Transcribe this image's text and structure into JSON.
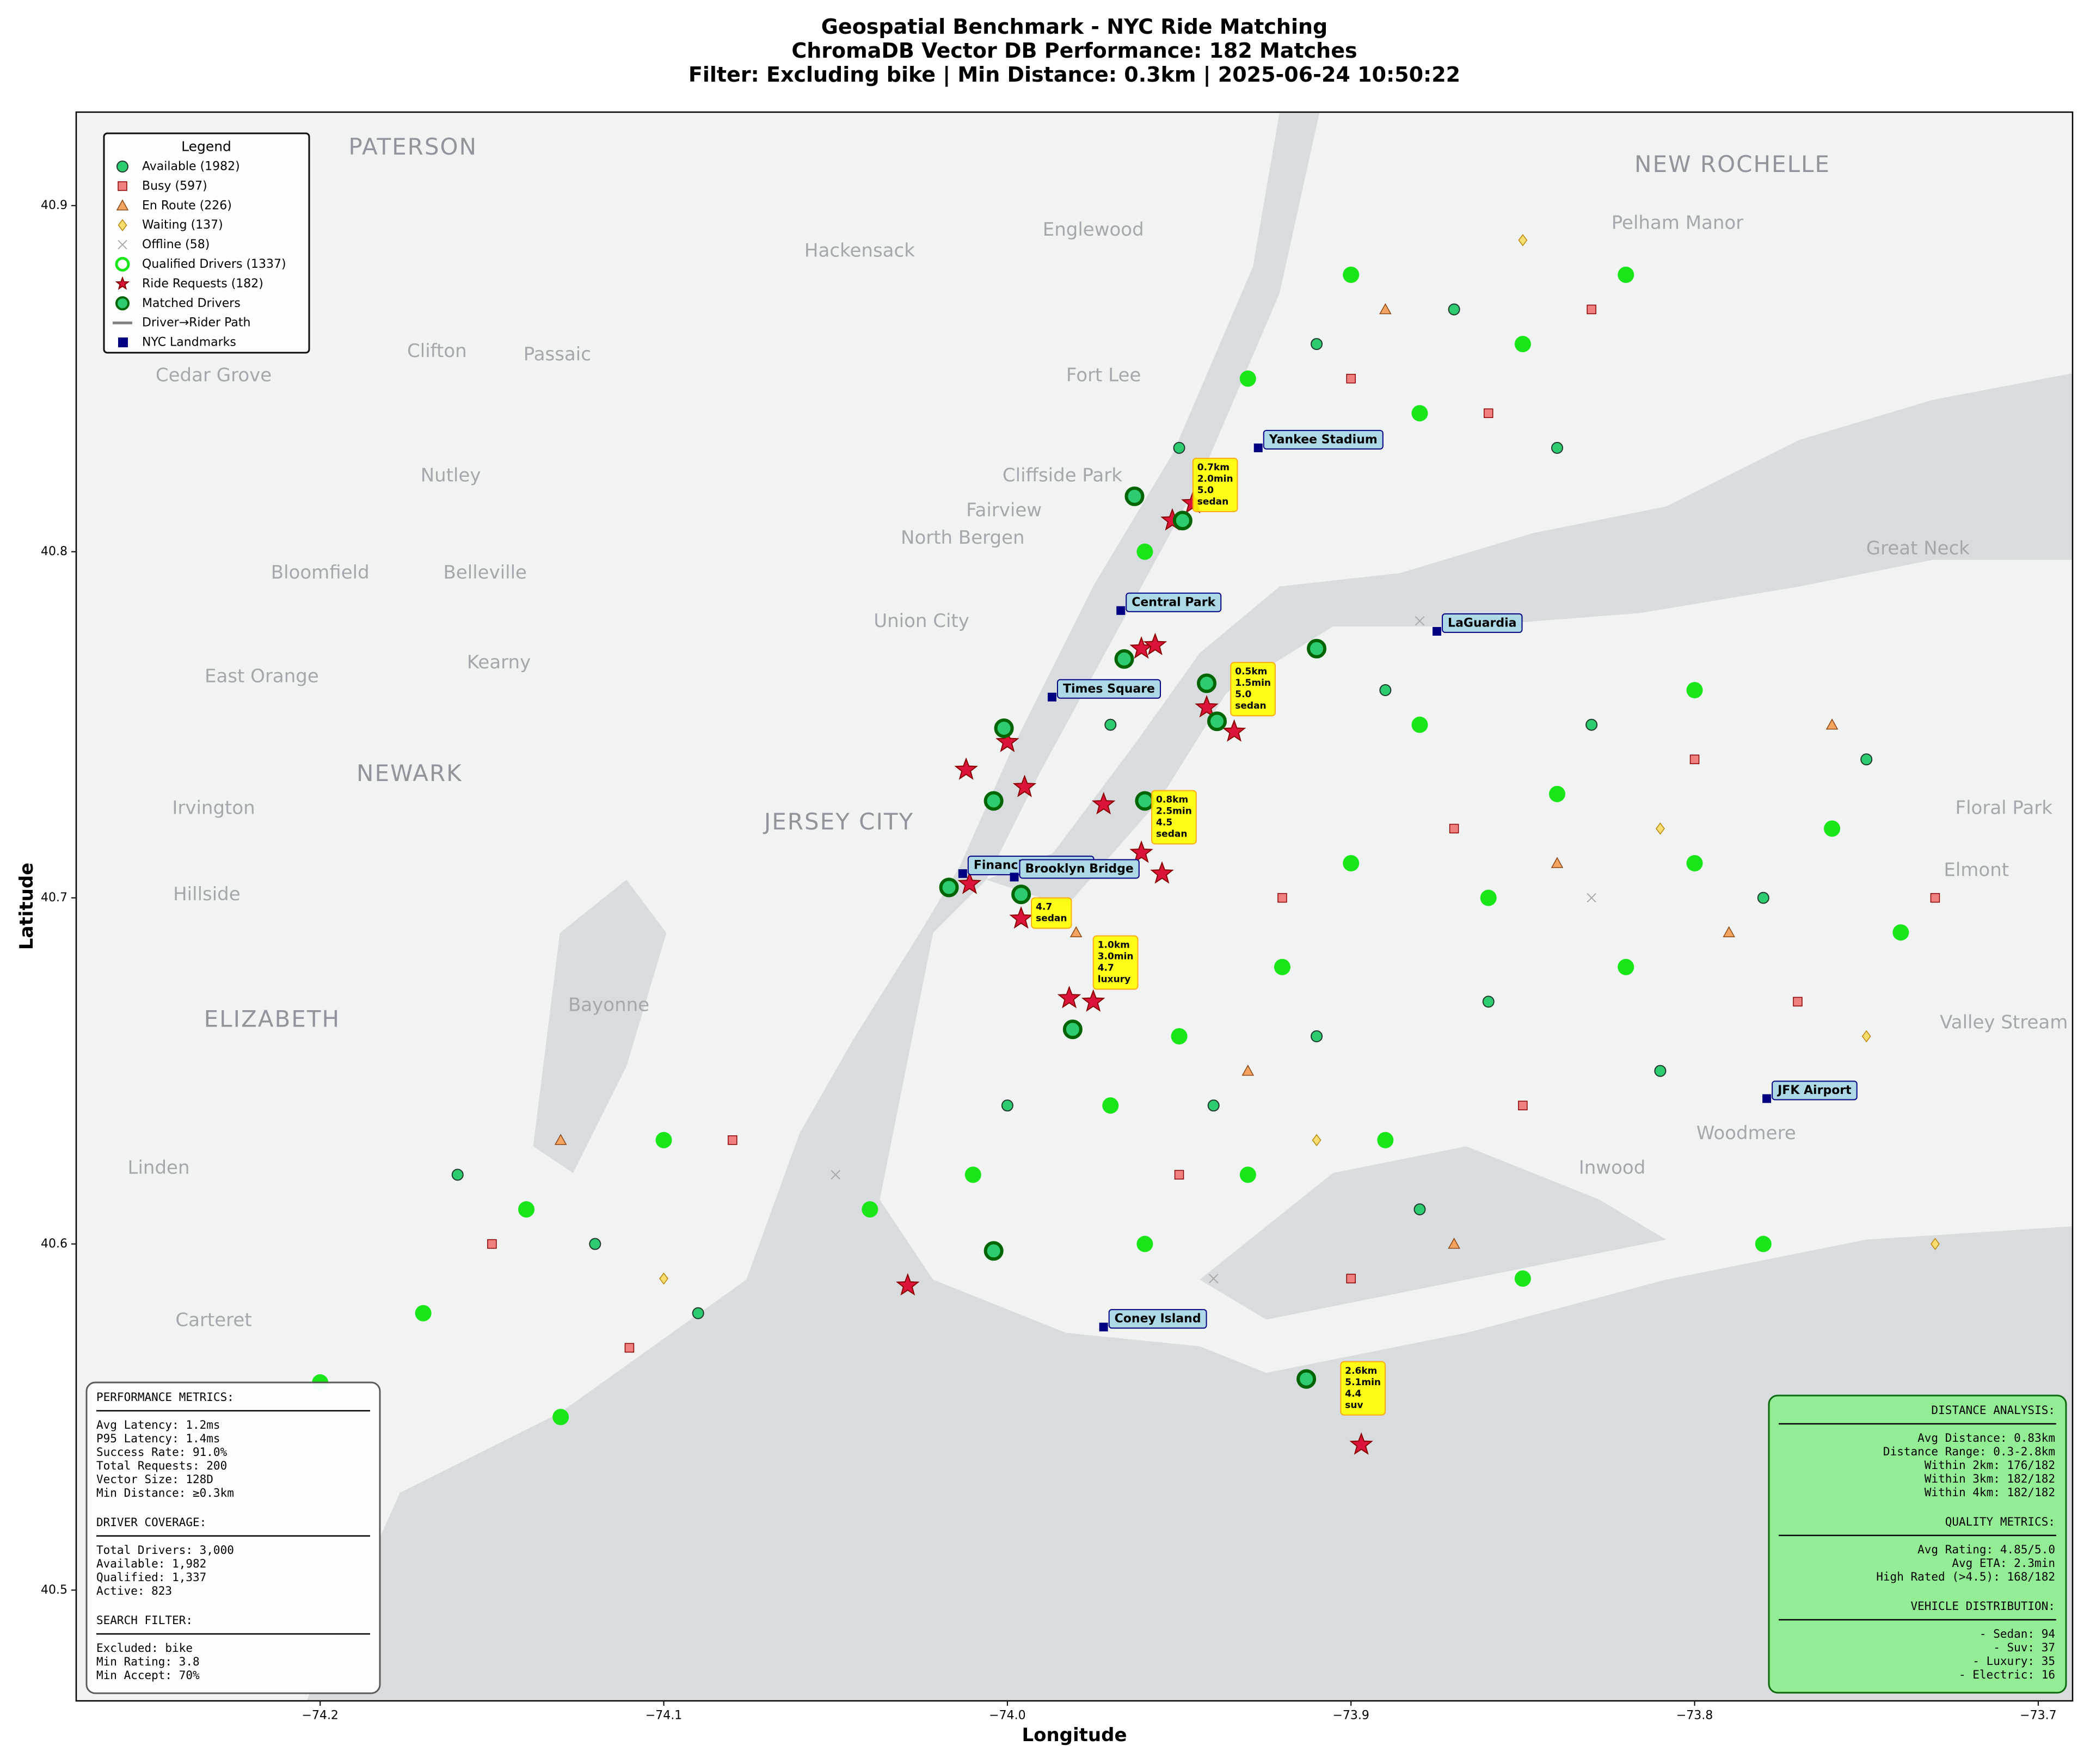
{
  "chart_data": {
    "type": "scatter",
    "title": "Geospatial Benchmark - NYC Ride Matching",
    "subtitle": [
      "ChromaDB Vector DB Performance: 182 Matches",
      "Filter: Excluding bike | Min Distance: 0.3km | 2025-06-24 10:50:22"
    ],
    "xlabel": "Longitude",
    "ylabel": "Latitude",
    "xlim": [
      -74.271,
      -73.69
    ],
    "ylim": [
      40.468,
      40.927
    ],
    "xticks": [
      {
        "value": -74.2,
        "label": "−74.2"
      },
      {
        "value": -74.1,
        "label": "−74.1"
      },
      {
        "value": -74.0,
        "label": "−74.0"
      },
      {
        "value": -73.9,
        "label": "−73.9"
      },
      {
        "value": -73.8,
        "label": "−73.8"
      },
      {
        "value": -73.7,
        "label": "−73.7"
      }
    ],
    "yticks": [
      40.5,
      40.6,
      40.7,
      40.8,
      40.9
    ],
    "grid": false,
    "legend_title": "Legend",
    "legend_corner": "upper left",
    "series": [
      {
        "name": "Available (1982)",
        "marker": "circle",
        "color": "#2ecc71",
        "edgecolor": "#1e3a2a",
        "x": [
          -73.91,
          -73.87,
          -73.84,
          -73.95,
          -73.89,
          -73.83,
          -73.78,
          -73.86,
          -73.91,
          -73.94,
          -73.88,
          -74.0,
          -74.12,
          -74.16,
          -74.09,
          -73.75,
          -73.81,
          -73.97
        ],
        "values": [
          40.86,
          40.87,
          40.83,
          40.83,
          40.76,
          40.75,
          40.7,
          40.67,
          40.66,
          40.64,
          40.61,
          40.64,
          40.6,
          40.62,
          40.58,
          40.74,
          40.65,
          40.75
        ]
      },
      {
        "name": "Busy (597)",
        "marker": "square",
        "color": "#f08080",
        "edgecolor": "#8b0000",
        "x": [
          -73.9,
          -73.86,
          -73.83,
          -73.87,
          -73.8,
          -73.77,
          -73.92,
          -73.95,
          -73.9,
          -74.08,
          -74.15,
          -74.11,
          -73.85,
          -73.73
        ],
        "values": [
          40.85,
          40.84,
          40.87,
          40.72,
          40.74,
          40.67,
          40.7,
          40.62,
          40.59,
          40.63,
          40.6,
          40.57,
          40.64,
          40.7
        ]
      },
      {
        "name": "En Route (226)",
        "marker": "triangle",
        "color": "#f4a460",
        "edgecolor": "#8b4513",
        "x": [
          -73.89,
          -73.84,
          -73.79,
          -73.93,
          -74.13,
          -73.87,
          -73.76,
          -73.98
        ],
        "values": [
          40.87,
          40.71,
          40.69,
          40.65,
          40.63,
          40.6,
          40.75,
          40.69
        ]
      },
      {
        "name": "Waiting (137)",
        "marker": "diamond",
        "color": "#f7dc6f",
        "edgecolor": "#b8860b",
        "x": [
          -73.85,
          -73.81,
          -73.75,
          -73.91,
          -74.1,
          -73.73
        ],
        "values": [
          40.89,
          40.72,
          40.66,
          40.63,
          40.59,
          40.6
        ]
      },
      {
        "name": "Offline (58)",
        "marker": "x",
        "color": "#a9a9a9",
        "x": [
          -73.88,
          -73.83,
          -74.05,
          -73.94
        ],
        "values": [
          40.78,
          40.7,
          40.62,
          40.59
        ]
      },
      {
        "name": "Qualified Drivers (1337)",
        "marker": "circle",
        "color": "#19e619",
        "x": [
          -73.9,
          -73.85,
          -73.82,
          -73.88,
          -73.93,
          -73.96,
          -73.88,
          -73.84,
          -73.8,
          -73.76,
          -73.74,
          -73.82,
          -73.86,
          -73.9,
          -73.92,
          -73.95,
          -73.97,
          -73.93,
          -73.89,
          -73.96,
          -74.01,
          -74.04,
          -74.1,
          -74.14,
          -74.17,
          -74.2,
          -74.13,
          -73.85,
          -73.78,
          -73.8
        ],
        "values": [
          40.88,
          40.86,
          40.88,
          40.84,
          40.85,
          40.8,
          40.75,
          40.73,
          40.71,
          40.72,
          40.69,
          40.68,
          40.7,
          40.71,
          40.68,
          40.66,
          40.64,
          40.62,
          40.63,
          40.6,
          40.62,
          40.61,
          40.63,
          40.61,
          40.58,
          40.56,
          40.55,
          40.59,
          40.6,
          40.76
        ]
      },
      {
        "name": "Ride Requests (182)",
        "marker": "star",
        "color": "#dc143c",
        "edgecolor": "#8b0000",
        "x": [
          -73.946,
          -73.952,
          -73.961,
          -73.957,
          -73.942,
          -73.934,
          -74.0,
          -73.995,
          -74.012,
          -73.972,
          -73.961,
          -73.955,
          -74.011,
          -73.996,
          -73.982,
          -73.975,
          -74.029,
          -73.897
        ],
        "values": [
          40.814,
          40.809,
          40.772,
          40.773,
          40.755,
          40.748,
          40.745,
          40.732,
          40.737,
          40.727,
          40.713,
          40.707,
          40.704,
          40.694,
          40.671,
          40.67,
          40.588,
          40.542
        ]
      },
      {
        "name": "Matched Drivers",
        "marker": "circle",
        "color": "#2ecc71",
        "edgecolor": "#006400",
        "x": [
          -73.963,
          -73.949,
          -73.966,
          -73.942,
          -73.91,
          -73.939,
          -74.001,
          -74.004,
          -73.96,
          -74.017,
          -73.996,
          -73.981,
          -74.004,
          -73.913
        ],
        "values": [
          40.816,
          40.809,
          40.769,
          40.762,
          40.772,
          40.751,
          40.749,
          40.728,
          40.728,
          40.703,
          40.701,
          40.662,
          40.598,
          40.561
        ]
      }
    ],
    "path_legend": {
      "name": "Driver→Rider Path",
      "color": "#808080"
    },
    "landmarks": {
      "name": "NYC Landmarks",
      "color": "#000080",
      "labels": [
        "Yankee Stadium",
        "Central Park",
        "Times Square",
        "LaGuardia",
        "Financial District",
        "Brooklyn Bridge",
        "JFK Airport",
        "Coney Island"
      ],
      "x": [
        -73.927,
        -73.967,
        -73.987,
        -73.875,
        -74.013,
        -73.998,
        -73.779,
        -73.972
      ],
      "values": [
        40.83,
        40.783,
        40.758,
        40.777,
        40.707,
        40.706,
        40.642,
        40.576
      ]
    },
    "annotations": [
      {
        "text": [
          "0.7km",
          "2.0min",
          "5.0",
          "sedan"
        ],
        "x": -73.946,
        "y": 40.827
      },
      {
        "text": [
          "0.5km",
          "1.5min",
          "5.0",
          "sedan"
        ],
        "x": -73.935,
        "y": 40.768
      },
      {
        "text": [
          "0.8km",
          "2.5min",
          "4.5",
          "sedan"
        ],
        "x": -73.958,
        "y": 40.731
      },
      {
        "text": [
          "4.7",
          "sedan"
        ],
        "x": -73.993,
        "y": 40.7
      },
      {
        "text": [
          "1.0km",
          "3.0min",
          "4.7",
          "luxury"
        ],
        "x": -73.975,
        "y": 40.689
      },
      {
        "text": [
          "2.6km",
          "5.1min",
          "4.4",
          "suv"
        ],
        "x": -73.903,
        "y": 40.566
      }
    ],
    "map_labels": [
      {
        "text": "PATERSON",
        "x": -74.173,
        "y": 40.917
      },
      {
        "text": "NEW ROCHELLE",
        "x": -73.789,
        "y": 40.912
      },
      {
        "text": "Hackensack",
        "x": -74.043,
        "y": 40.887
      },
      {
        "text": "Englewood",
        "x": -73.975,
        "y": 40.893
      },
      {
        "text": "Pelham Manor",
        "x": -73.805,
        "y": 40.895
      },
      {
        "text": "Clifton",
        "x": -74.166,
        "y": 40.858
      },
      {
        "text": "Passaic",
        "x": -74.131,
        "y": 40.857
      },
      {
        "text": "Cedar Grove",
        "x": -74.231,
        "y": 40.851
      },
      {
        "text": "Fort Lee",
        "x": -73.972,
        "y": 40.851
      },
      {
        "text": "Nutley",
        "x": -74.162,
        "y": 40.822
      },
      {
        "text": "Cliffside Park",
        "x": -73.984,
        "y": 40.822
      },
      {
        "text": "Fairview",
        "x": -74.001,
        "y": 40.812
      },
      {
        "text": "North Bergen",
        "x": -74.013,
        "y": 40.804
      },
      {
        "text": "Bloomfield",
        "x": -74.2,
        "y": 40.794
      },
      {
        "text": "Belleville",
        "x": -74.152,
        "y": 40.794
      },
      {
        "text": "Union City",
        "x": -74.025,
        "y": 40.78
      },
      {
        "text": "Kearny",
        "x": -74.148,
        "y": 40.768
      },
      {
        "text": "East Orange",
        "x": -74.217,
        "y": 40.764
      },
      {
        "text": "NEWARK",
        "x": -74.174,
        "y": 40.736
      },
      {
        "text": "Irvington",
        "x": -74.231,
        "y": 40.726
      },
      {
        "text": "JERSEY CITY",
        "x": -74.049,
        "y": 40.722
      },
      {
        "text": "Hillside",
        "x": -74.233,
        "y": 40.701
      },
      {
        "text": "Bayonne",
        "x": -74.116,
        "y": 40.669
      },
      {
        "text": "ELIZABETH",
        "x": -74.214,
        "y": 40.665
      },
      {
        "text": "Linden",
        "x": -74.247,
        "y": 40.622
      },
      {
        "text": "Carteret",
        "x": -74.231,
        "y": 40.578
      },
      {
        "text": "Inwood",
        "x": -73.824,
        "y": 40.622
      },
      {
        "text": "Woodmere",
        "x": -73.785,
        "y": 40.632
      },
      {
        "text": "Valley Stream",
        "x": -73.71,
        "y": 40.664
      },
      {
        "text": "Elmont",
        "x": -73.718,
        "y": 40.708
      },
      {
        "text": "Floral Park",
        "x": -73.71,
        "y": 40.726
      },
      {
        "text": "Great Neck",
        "x": -73.735,
        "y": 40.801
      }
    ],
    "info_boxes": [
      {
        "corner": "lower left",
        "sections": [
          {
            "heading": "PERFORMANCE METRICS:",
            "lines": [
              "Avg Latency: 1.2ms",
              "P95 Latency: 1.4ms",
              "Success Rate: 91.0%",
              "Total Requests: 200",
              "Vector Size: 128D",
              "Min Distance: ≥0.3km"
            ]
          },
          {
            "heading": "DRIVER COVERAGE:",
            "lines": [
              "Total Drivers: 3,000",
              "Available: 1,982",
              "Qualified: 1,337",
              "Active: 823"
            ]
          },
          {
            "heading": "SEARCH FILTER:",
            "lines": [
              "Excluded: bike",
              "Min Rating: 3.8",
              "Min Accept: 70%"
            ]
          }
        ]
      },
      {
        "corner": "lower right",
        "sections": [
          {
            "heading": "DISTANCE ANALYSIS:",
            "lines": [
              "Avg Distance: 0.83km",
              "Distance Range: 0.3-2.8km",
              "Within 2km: 176/182",
              "Within 3km: 182/182",
              "Within 4km: 182/182"
            ]
          },
          {
            "heading": "QUALITY METRICS:",
            "lines": [
              "Avg Rating: 4.85/5.0",
              "Avg ETA: 2.3min",
              "High Rated (>4.5): 168/182"
            ]
          },
          {
            "heading": "VEHICLE DISTRIBUTION:",
            "lines": [
              "- Sedan: 94",
              "- Suv: 37",
              "- Luxury: 35",
              "- Electric: 16"
            ]
          }
        ]
      }
    ]
  }
}
